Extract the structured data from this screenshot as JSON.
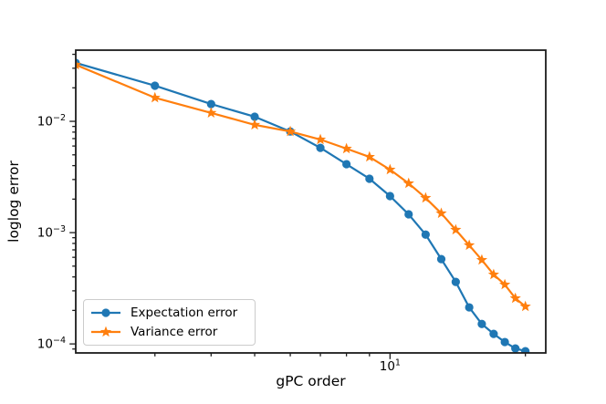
{
  "chart_data": {
    "type": "line",
    "title": "",
    "xlabel": "gPC order",
    "ylabel": "loglog error",
    "x_scale": "log",
    "y_scale": "log",
    "xlim": [
      2,
      22.2
    ],
    "ylim": [
      8.3e-05,
      0.0436
    ],
    "grid": false,
    "legend_position": "lower left",
    "x": [
      2,
      3,
      4,
      5,
      6,
      7,
      8,
      9,
      10,
      11,
      12,
      13,
      14,
      15,
      16,
      17,
      18,
      19,
      20
    ],
    "series": [
      {
        "name": "Expectation error",
        "color": "#1f77b4",
        "marker": "circle",
        "values": [
          0.0335,
          0.0209,
          0.0143,
          0.011,
          0.0081,
          0.00578,
          0.00412,
          0.00305,
          0.00213,
          0.00146,
          0.00096,
          0.000578,
          0.000361,
          0.000213,
          0.000151,
          0.000123,
          0.000104,
          9.1e-05,
          8.6e-05
        ]
      },
      {
        "name": "Variance error",
        "color": "#ff7f0e",
        "marker": "star",
        "values": [
          0.0322,
          0.0163,
          0.0119,
          0.0093,
          0.0081,
          0.00686,
          0.00568,
          0.00479,
          0.00368,
          0.00277,
          0.00205,
          0.00149,
          0.00106,
          0.00077,
          0.000568,
          0.00042,
          0.000341,
          0.000257,
          0.000217
        ]
      }
    ],
    "x_ticks": {
      "major": [
        {
          "value": 10,
          "base": "10",
          "exp": "1"
        }
      ],
      "minor": [
        3,
        4,
        5,
        6,
        7,
        8,
        9,
        20
      ]
    },
    "y_ticks": {
      "major": [
        {
          "value": 0.01,
          "base": "10",
          "exp": "−2"
        },
        {
          "value": 0.001,
          "base": "10",
          "exp": "−3"
        },
        {
          "value": 0.0001,
          "base": "10",
          "exp": "−4"
        }
      ],
      "minor": [
        0.02,
        0.03,
        0.04,
        0.002,
        0.003,
        0.004,
        0.005,
        0.006,
        0.007,
        0.008,
        0.009,
        0.0002,
        0.0003,
        0.0004,
        0.0005,
        0.0006,
        0.0007,
        0.0008,
        0.0009,
        9e-05
      ]
    }
  }
}
